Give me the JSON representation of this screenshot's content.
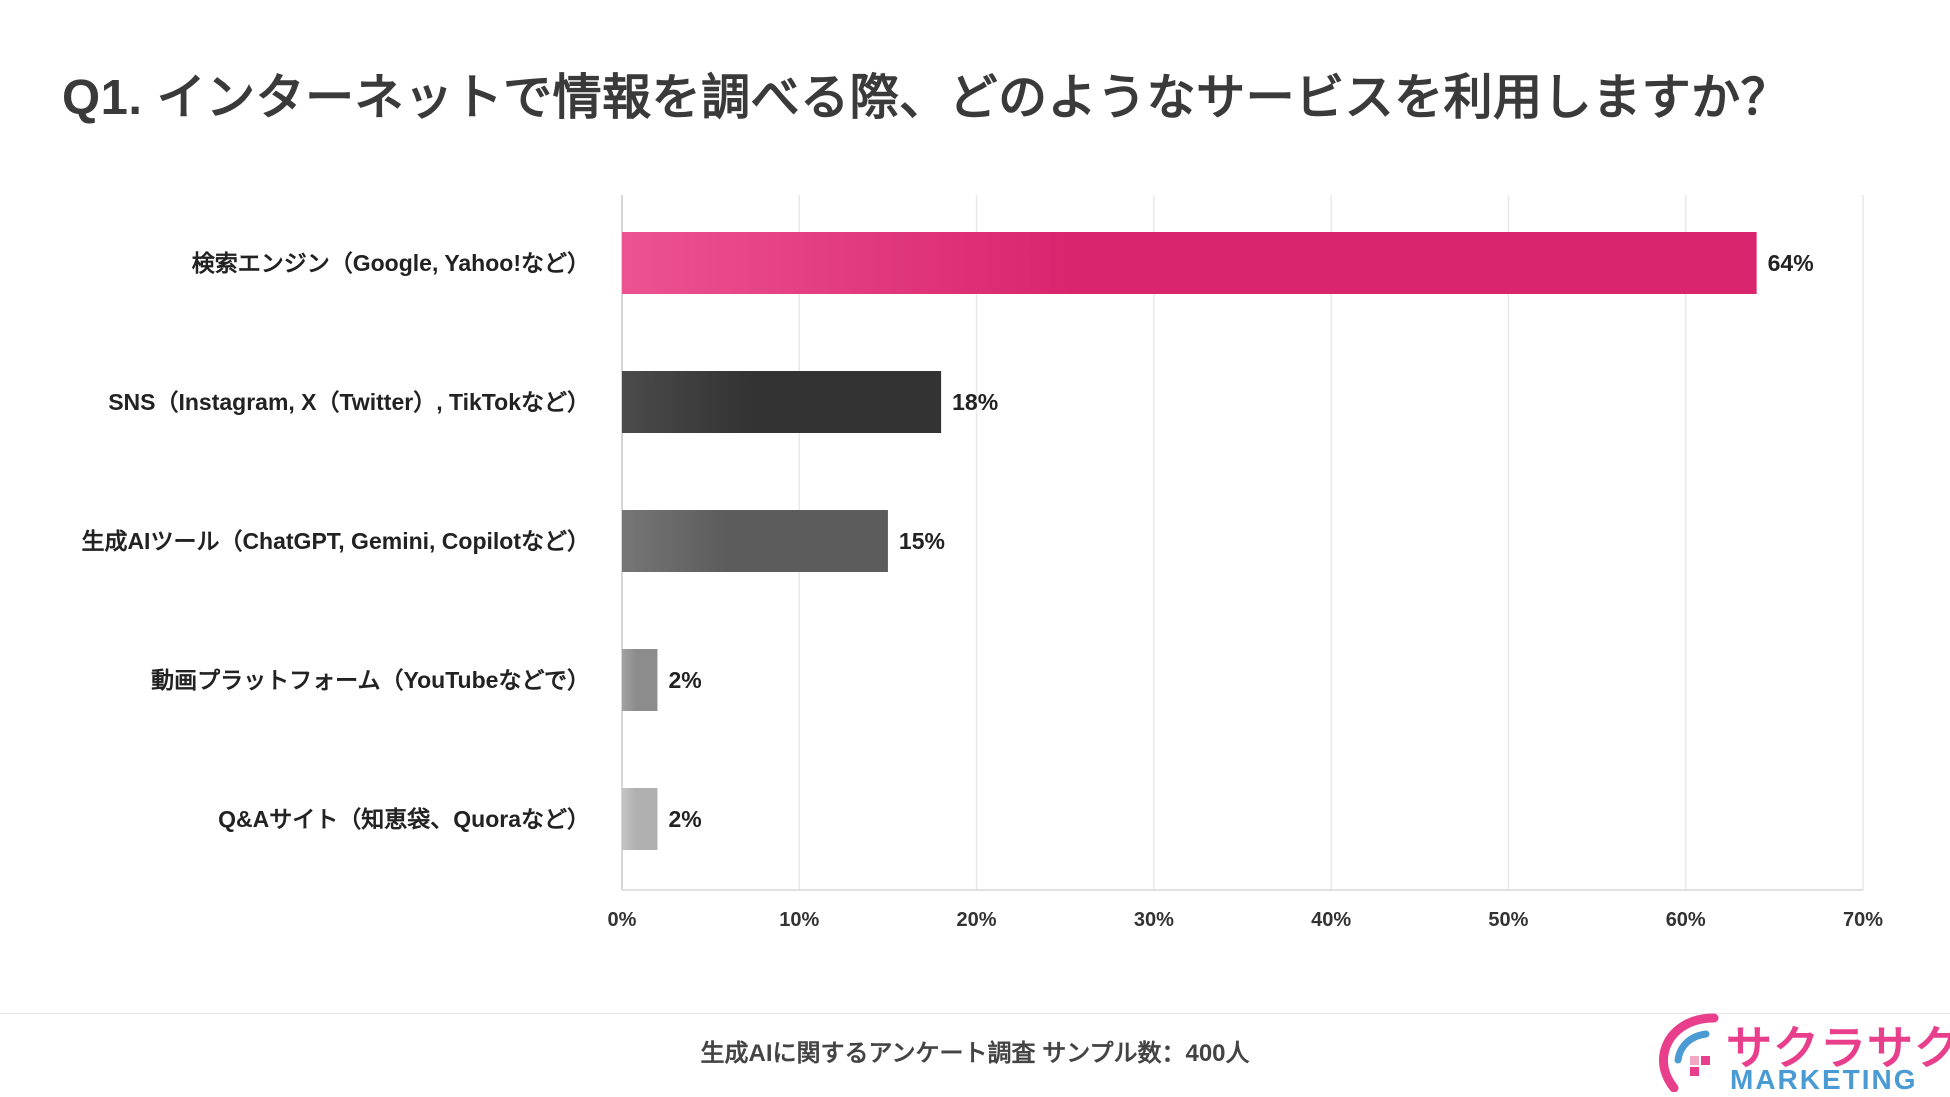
{
  "title": "Q1. インターネットで情報を調べる際、どのようなサービスを利用しますか？",
  "chart_data": {
    "type": "bar",
    "orientation": "horizontal",
    "categories": [
      "検索エンジン（Google, Yahoo!など）",
      "SNS（Instagram, X（Twitter）, TikTokなど）",
      "生成AIツール（ChatGPT, Gemini, Copilotなど）",
      "動画プラットフォーム（YouTubeなどで）",
      "Q&Aサイト（知恵袋、Quoraなど）"
    ],
    "values": [
      64,
      18,
      15,
      2,
      2
    ],
    "value_labels": [
      "64%",
      "18%",
      "15%",
      "2%",
      "2%"
    ],
    "xlim": [
      0,
      70
    ],
    "xticks": [
      0,
      10,
      20,
      30,
      40,
      50,
      60,
      70
    ],
    "xtick_labels": [
      "0%",
      "10%",
      "20%",
      "30%",
      "40%",
      "50%",
      "60%",
      "70%"
    ],
    "grid": true,
    "bar_colors": [
      [
        "#ec5291",
        "#d9246e"
      ],
      [
        "#4b4b4b",
        "#333333"
      ],
      [
        "#767676",
        "#5c5c5c"
      ],
      [
        "#a2a2a2",
        "#8c8c8c"
      ],
      [
        "#c4c4c4",
        "#b0b0b0"
      ]
    ],
    "xlabel": "",
    "ylabel": ""
  },
  "footer": {
    "note": "生成AIに関するアンケート調査 サンプル数：400人"
  },
  "brand": {
    "name": "サクラサク",
    "sub": "MARKETING",
    "accent": "#e83e8c",
    "secondary": "#4a9bd4"
  }
}
